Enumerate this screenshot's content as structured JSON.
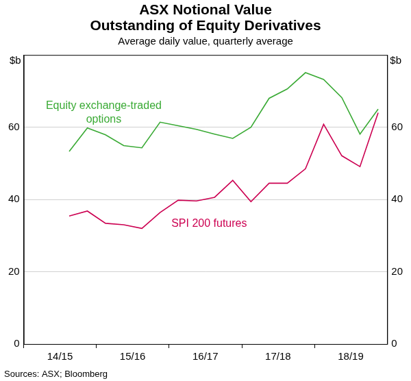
{
  "chart_data": {
    "type": "line",
    "title": [
      "ASX Notional Value",
      "Outstanding of Equity Derivatives"
    ],
    "subtitle": "Average daily value, quarterly average",
    "ylabel": "$b",
    "y2label": "$b",
    "source": "Sources: ASX; Bloomberg",
    "categories": [
      null,
      "14/15",
      null,
      null,
      null,
      "15/16",
      null,
      null,
      null,
      "16/17",
      null,
      null,
      null,
      "17/18",
      null,
      null,
      null,
      "18/19",
      null,
      null
    ],
    "series": [
      {
        "name": "Equity exchange-traded options",
        "color": "#3aaa35",
        "values": [
          null,
          null,
          53.3,
          59.8,
          57.9,
          54.9,
          54.3,
          61.4,
          60.4,
          59.4,
          58.1,
          56.9,
          60.0,
          68.0,
          70.6,
          75.1,
          73.2,
          68.2,
          58.1,
          65.0
        ]
      },
      {
        "name": "SPI 200 futures",
        "color": "#cc0051",
        "values": [
          null,
          null,
          35.4,
          36.8,
          33.4,
          33.0,
          32.0,
          36.4,
          39.8,
          39.6,
          40.6,
          45.3,
          39.4,
          44.5,
          44.5,
          48.5,
          60.8,
          52.1,
          49.1,
          64.0
        ]
      }
    ],
    "ylim": [
      0,
      80
    ],
    "yticks": [
      0,
      20,
      40,
      60
    ],
    "y2lim": [
      0,
      80
    ],
    "y2ticks": [
      0,
      20,
      40,
      60
    ],
    "grid": true
  }
}
